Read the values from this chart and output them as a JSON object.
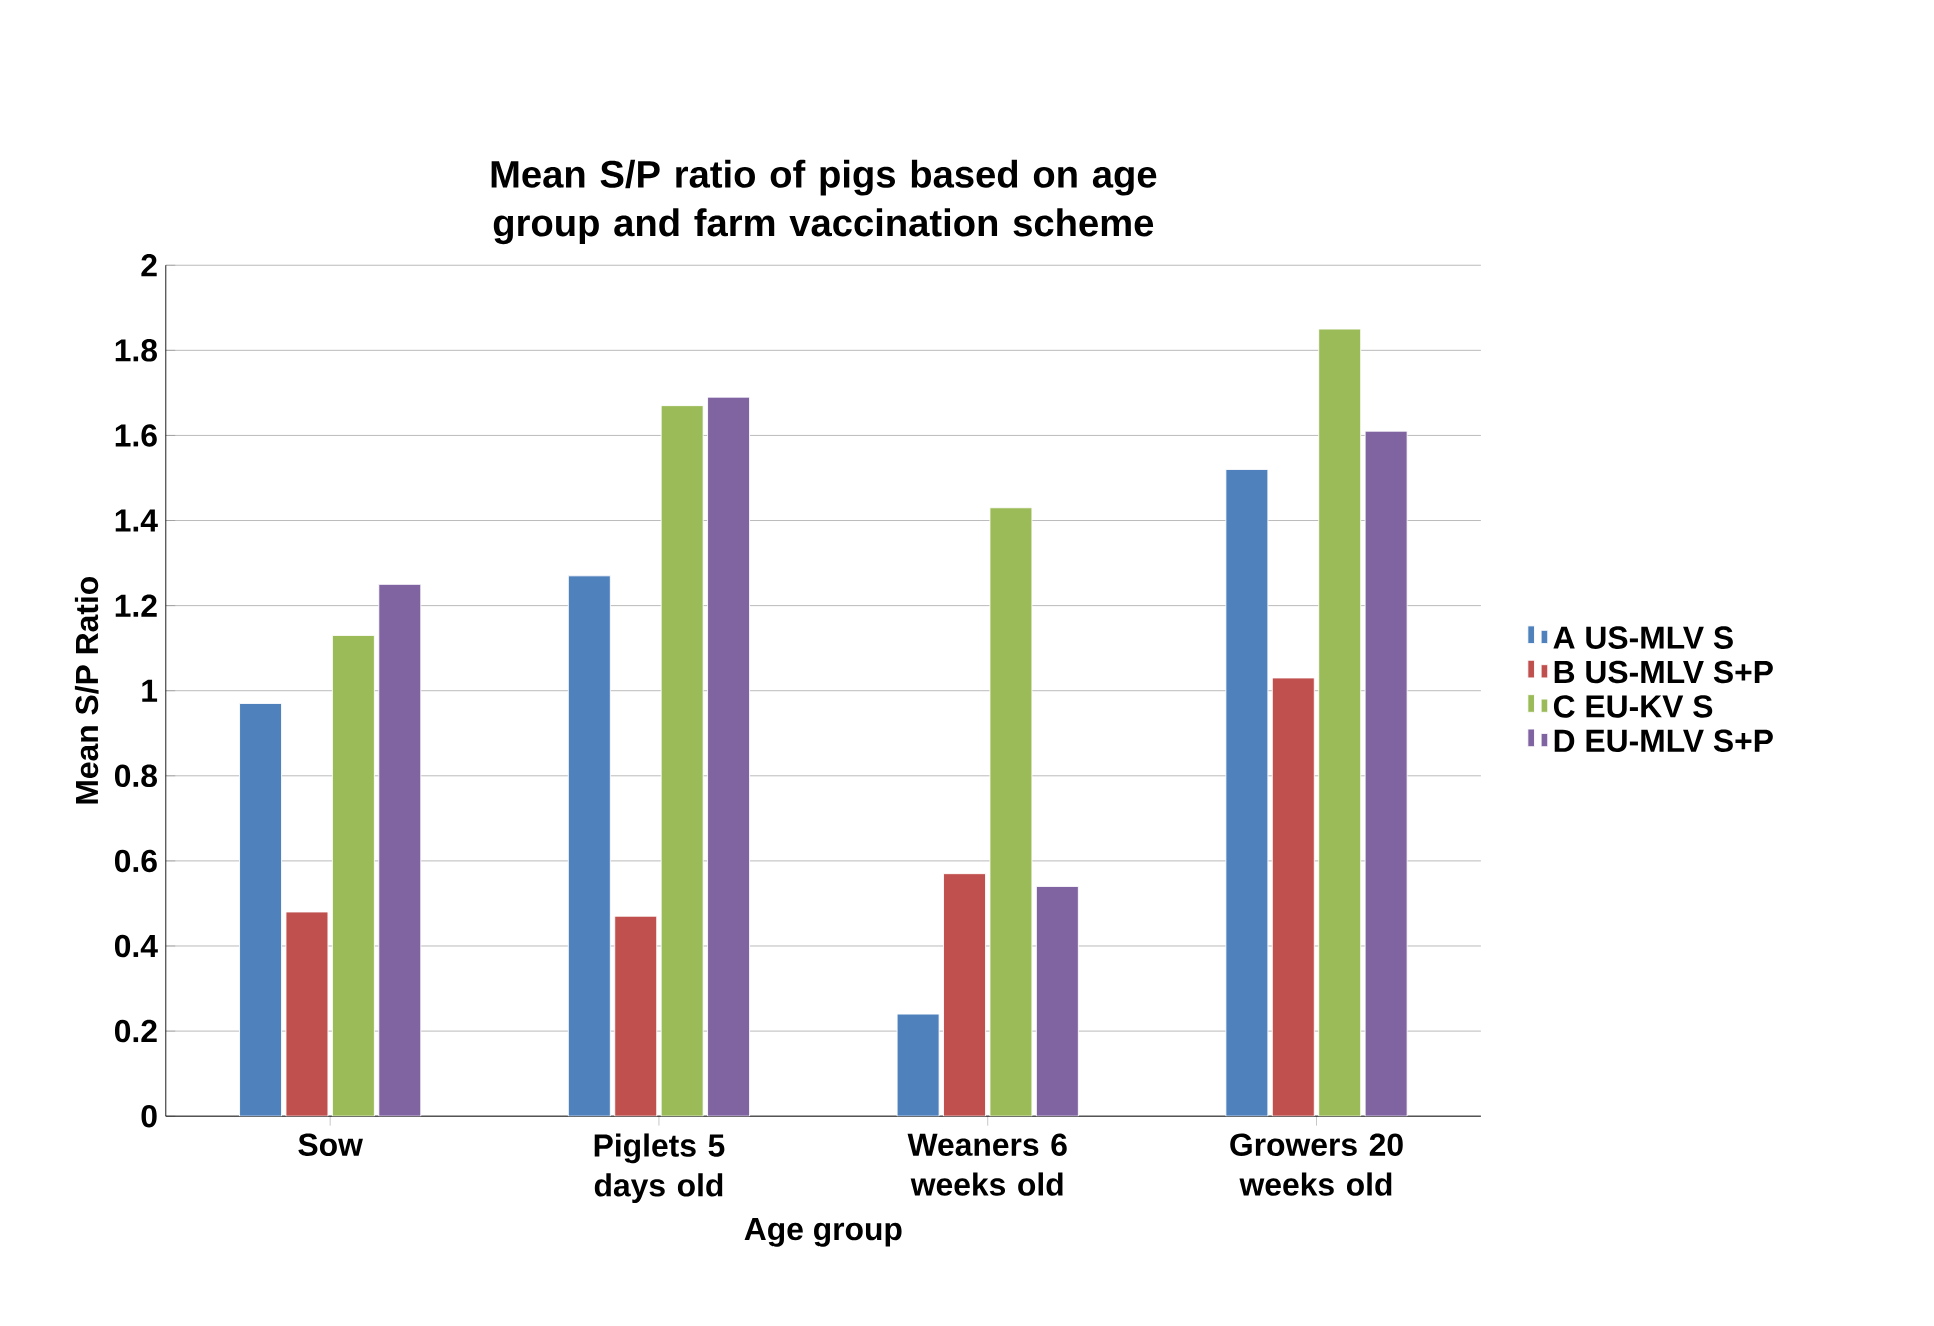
{
  "chart_data": {
    "type": "bar",
    "title": "Mean S/P ratio of pigs based on age group and farm vaccination scheme",
    "xlabel": "Age group",
    "ylabel": "Mean S/P Ratio",
    "categories": [
      "Sow",
      "Piglets 5 days old",
      "Weaners 6 weeks old",
      "Growers 20 weeks old"
    ],
    "series": [
      {
        "name": "A US-MLV S",
        "color": "#4f81bd",
        "values": [
          0.97,
          1.27,
          0.24,
          1.52
        ]
      },
      {
        "name": "B US-MLV S+P",
        "color": "#c0504d",
        "values": [
          0.48,
          0.47,
          0.57,
          1.03
        ]
      },
      {
        "name": "C EU-KV S",
        "color": "#9bbb59",
        "values": [
          1.13,
          1.67,
          1.43,
          1.85
        ]
      },
      {
        "name": "D EU-MLV S+P",
        "color": "#8064a2",
        "values": [
          1.25,
          1.69,
          0.54,
          1.61
        ]
      }
    ],
    "ylim": [
      0,
      2
    ],
    "yticks": [
      0,
      0.2,
      0.4,
      0.6,
      0.8,
      1,
      1.2,
      1.4,
      1.6,
      1.8,
      2
    ],
    "grid": "y",
    "legend": "right"
  }
}
